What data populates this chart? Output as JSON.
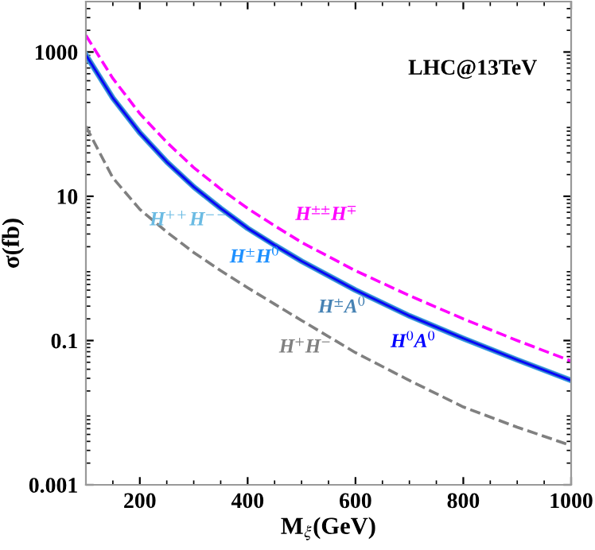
{
  "chart_data": {
    "type": "line",
    "xlabel": "M$_{ξ}$(GeV)",
    "ylabel": "σ(fb)",
    "annotations": [
      "LHC@13TeV"
    ],
    "x": [
      100,
      150,
      200,
      250,
      300,
      350,
      400,
      450,
      500,
      600,
      700,
      800,
      900,
      1000
    ],
    "series": [
      {
        "name": "H$^{±±}$H$^{∓}$",
        "color": "#ff00ff",
        "line_style": "dashed",
        "values": [
          1700,
          430,
          140,
          56,
          25,
          12.6,
          6.8,
          3.9,
          2.3,
          0.93,
          0.42,
          0.2,
          0.1,
          0.052
        ]
      },
      {
        "name": "H$^{++}$H$^{−−}$",
        "color": "#6bbbe3",
        "line_style": "solid",
        "values": [
          910,
          230,
          76,
          30,
          13.5,
          6.8,
          3.6,
          2.1,
          1.26,
          0.5,
          0.22,
          0.107,
          0.054,
          0.028
        ]
      },
      {
        "name": "H$^{±}$H$^{0}$",
        "color": "#1e90ff",
        "line_style": "solid",
        "values": [
          910,
          230,
          76,
          30,
          13.5,
          6.8,
          3.6,
          2.1,
          1.26,
          0.5,
          0.22,
          0.107,
          0.054,
          0.028
        ]
      },
      {
        "name": "H$^{±}$A$^{0}$",
        "color": "#4682b4",
        "line_style": "solid",
        "values": [
          910,
          230,
          76,
          30,
          13.5,
          6.8,
          3.6,
          2.1,
          1.26,
          0.5,
          0.22,
          0.107,
          0.054,
          0.028
        ]
      },
      {
        "name": "H$^{0}$A$^{0}$",
        "color": "#0000ff",
        "line_style": "solid",
        "values": [
          910,
          230,
          76,
          30,
          13.5,
          6.8,
          3.6,
          2.1,
          1.26,
          0.5,
          0.22,
          0.107,
          0.054,
          0.028
        ]
      },
      {
        "name": "H$^{+}$H$^{−}$",
        "color": "#808080",
        "line_style": "dashed",
        "values": [
          93,
          18,
          6.6,
          3.2,
          1.66,
          0.93,
          0.54,
          0.32,
          0.19,
          0.068,
          0.028,
          0.012,
          0.0063,
          0.0035
        ]
      }
    ],
    "log": "y",
    "xlim": [
      100,
      1000
    ],
    "ylim": [
      0.001,
      5000
    ],
    "xticks": [
      200,
      400,
      600,
      800,
      1000
    ],
    "yticks": [
      0.001,
      0.1,
      10,
      1000
    ],
    "grid": false,
    "legend": false
  }
}
